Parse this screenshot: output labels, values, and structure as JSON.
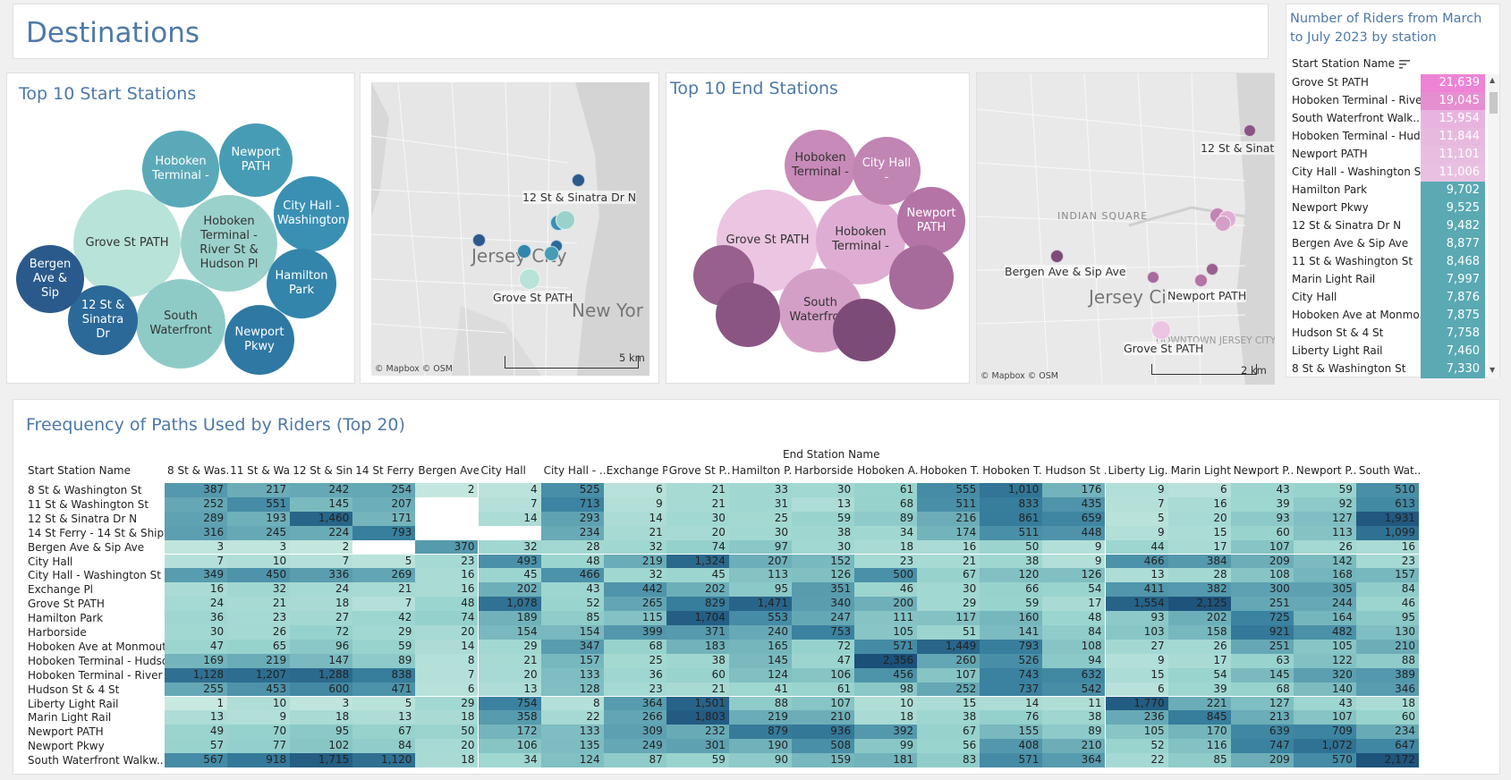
{
  "header": {
    "title": "Destinations"
  },
  "top_start": {
    "title": "Top 10 Start Stations",
    "bubbles": [
      {
        "label": "Grove St PATH",
        "color": "#b8e3d8"
      },
      {
        "label": "Hoboken Terminal - River St & Hudson Pl",
        "color": "#9bd1cb"
      },
      {
        "label": "South Waterfront",
        "color": "#8ecbc7"
      },
      {
        "label": "Hoboken Terminal -",
        "color": "#5aa9b9"
      },
      {
        "label": "Newport PATH",
        "color": "#479cb5"
      },
      {
        "label": "City Hall - Washington",
        "color": "#3a90b3"
      },
      {
        "label": "Hamilton Park",
        "color": "#3385ab"
      },
      {
        "label": "Newport Pkwy",
        "color": "#2e78a4"
      },
      {
        "label": "12 St & Sinatra Dr",
        "color": "#2b6999"
      },
      {
        "label": "Bergen Ave & Sip",
        "color": "#2a5a8c"
      }
    ]
  },
  "map1": {
    "labels": [
      "12 St & Sinatra Dr N",
      "Grove St PATH",
      "Jersey City",
      "New Yor"
    ],
    "attribution": "© Mapbox © OSM",
    "scale": "5 km"
  },
  "top_end": {
    "title": "Top 10 End Stations",
    "bubbles": [
      {
        "label": "Grove St PATH",
        "color": "#ebc5e1"
      },
      {
        "label": "Hoboken Terminal -",
        "color": "#dfadd3"
      },
      {
        "label": "South Waterfront",
        "color": "#d49fc6"
      },
      {
        "label": "Hoboken Terminal -",
        "color": "#c88ab8"
      },
      {
        "label": "City Hall -",
        "color": "#c085b3"
      },
      {
        "label": "Newport PATH",
        "color": "#b474a6"
      },
      {
        "label": "",
        "color": "#a66b9a"
      },
      {
        "label": "",
        "color": "#97608d"
      },
      {
        "label": "",
        "color": "#8a5583"
      },
      {
        "label": "",
        "color": "#7d4b78"
      }
    ]
  },
  "map2": {
    "labels": [
      "12 St & Sinatra",
      "INDIAN SQUARE",
      "Bergen Ave & Sip Ave",
      "Jersey Ci",
      "Newport PATH",
      "Grove St PATH",
      "DOWNTOWN JERSEY CITY"
    ],
    "attribution": "© Mapbox © OSM",
    "scale": "2 km"
  },
  "riders": {
    "title": "Number of Riders from March to July 2023 by station",
    "column_header": "Start Station Name",
    "rows": [
      {
        "name": "Grove St PATH",
        "value": "21,639",
        "color": "#ee83d6"
      },
      {
        "name": "Hoboken Terminal - Rive..",
        "value": "19,045",
        "color": "#e58fd0"
      },
      {
        "name": "South Waterfront Walk..",
        "value": "15,954",
        "color": "#e8b4df"
      },
      {
        "name": "Hoboken Terminal - Hud..",
        "value": "11,844",
        "color": "#e8b9df"
      },
      {
        "name": "Newport PATH",
        "value": "11,101",
        "color": "#e8bde0"
      },
      {
        "name": "City Hall - Washington S..",
        "value": "11,006",
        "color": "#e9c0e1"
      },
      {
        "name": "Hamilton Park",
        "value": "9,702",
        "color": "#5aa9b3"
      },
      {
        "name": "Newport Pkwy",
        "value": "9,525",
        "color": "#5aa9b3"
      },
      {
        "name": "12 St & Sinatra Dr N",
        "value": "9,482",
        "color": "#5aa9b3"
      },
      {
        "name": "Bergen Ave & Sip Ave",
        "value": "8,877",
        "color": "#5aa9b3"
      },
      {
        "name": "11 St & Washington St",
        "value": "8,468",
        "color": "#5aa9b3"
      },
      {
        "name": "Marin Light Rail",
        "value": "7,997",
        "color": "#5aa9b3"
      },
      {
        "name": "City Hall",
        "value": "7,876",
        "color": "#5aa9b3"
      },
      {
        "name": "Hoboken Ave at Monmo..",
        "value": "7,875",
        "color": "#5aa9b3"
      },
      {
        "name": "Hudson St & 4 St",
        "value": "7,758",
        "color": "#5aa9b3"
      },
      {
        "name": "Liberty Light Rail",
        "value": "7,460",
        "color": "#5aa9b3"
      },
      {
        "name": "8 St & Washington St",
        "value": "7,330",
        "color": "#5aa9b3"
      }
    ]
  },
  "freq": {
    "title": "Freequency of Paths Used by Riders (Top 20)",
    "end_header": "End Station Name",
    "row_header": "Start Station Name",
    "columns": [
      "8 St & Was..",
      "11 St & Wa..",
      "12 St & Sin..",
      "14 St Ferry ..",
      "Bergen Ave..",
      "City Hall",
      "City Hall - ..",
      "Exchange Pl",
      "Grove St P..",
      "Hamilton P..",
      "Harborside",
      "Hoboken A..",
      "Hoboken T..",
      "Hoboken T..",
      "Hudson St ..",
      "Liberty Lig..",
      "Marin Light..",
      "Newport P..",
      "Newport P..",
      "South Wat.."
    ],
    "rows": [
      {
        "name": "8 St & Washington St",
        "values": [
          387,
          217,
          242,
          254,
          2,
          4,
          525,
          6,
          21,
          33,
          30,
          61,
          555,
          1010,
          176,
          9,
          6,
          43,
          59,
          510
        ]
      },
      {
        "name": "11 St & Washington St",
        "values": [
          252,
          551,
          145,
          207,
          null,
          7,
          713,
          9,
          21,
          31,
          13,
          68,
          511,
          833,
          435,
          7,
          16,
          39,
          92,
          613
        ]
      },
      {
        "name": "12 St & Sinatra Dr N",
        "values": [
          289,
          193,
          1460,
          171,
          null,
          14,
          293,
          14,
          30,
          25,
          59,
          89,
          216,
          861,
          659,
          5,
          20,
          93,
          127,
          1931
        ]
      },
      {
        "name": "14 St Ferry - 14 St & Shipy..",
        "values": [
          316,
          245,
          224,
          793,
          null,
          null,
          234,
          21,
          20,
          30,
          38,
          34,
          174,
          511,
          448,
          9,
          15,
          60,
          113,
          1099
        ]
      },
      {
        "name": "Bergen Ave & Sip Ave",
        "values": [
          3,
          3,
          2,
          null,
          370,
          32,
          28,
          32,
          74,
          97,
          30,
          18,
          16,
          50,
          9,
          44,
          17,
          107,
          26,
          16
        ]
      },
      {
        "name": "City Hall",
        "values": [
          7,
          10,
          7,
          5,
          23,
          493,
          48,
          219,
          1324,
          207,
          152,
          23,
          21,
          38,
          9,
          466,
          384,
          209,
          142,
          23
        ]
      },
      {
        "name": "City Hall - Washington St ..",
        "values": [
          349,
          450,
          336,
          269,
          16,
          45,
          466,
          32,
          45,
          113,
          126,
          500,
          67,
          120,
          126,
          13,
          28,
          108,
          168,
          157
        ]
      },
      {
        "name": "Exchange Pl",
        "values": [
          16,
          32,
          24,
          21,
          16,
          202,
          43,
          442,
          202,
          95,
          351,
          46,
          30,
          66,
          54,
          411,
          382,
          300,
          305,
          84
        ]
      },
      {
        "name": "Grove St PATH",
        "values": [
          24,
          21,
          18,
          7,
          48,
          1078,
          52,
          265,
          829,
          1471,
          340,
          200,
          29,
          59,
          17,
          1554,
          2125,
          251,
          244,
          46
        ]
      },
      {
        "name": "Hamilton Park",
        "values": [
          36,
          23,
          27,
          42,
          74,
          189,
          85,
          115,
          1704,
          553,
          247,
          111,
          117,
          160,
          48,
          93,
          202,
          725,
          164,
          95
        ]
      },
      {
        "name": "Harborside",
        "values": [
          30,
          26,
          72,
          29,
          20,
          154,
          154,
          399,
          371,
          240,
          753,
          105,
          51,
          141,
          84,
          103,
          158,
          921,
          482,
          130
        ]
      },
      {
        "name": "Hoboken Ave at Monmout..",
        "values": [
          47,
          65,
          96,
          59,
          14,
          29,
          347,
          68,
          183,
          165,
          72,
          571,
          1449,
          793,
          108,
          27,
          26,
          251,
          105,
          210
        ]
      },
      {
        "name": "Hoboken Terminal - Hudso..",
        "values": [
          169,
          219,
          147,
          89,
          8,
          21,
          157,
          25,
          38,
          145,
          47,
          2356,
          260,
          526,
          94,
          9,
          17,
          63,
          122,
          88
        ]
      },
      {
        "name": "Hoboken Terminal - River ..",
        "values": [
          1128,
          1207,
          1288,
          838,
          7,
          20,
          133,
          36,
          60,
          124,
          106,
          456,
          107,
          743,
          632,
          15,
          54,
          145,
          320,
          389
        ]
      },
      {
        "name": "Hudson St & 4 St",
        "values": [
          255,
          453,
          600,
          471,
          6,
          13,
          128,
          23,
          21,
          41,
          61,
          98,
          252,
          737,
          542,
          6,
          39,
          68,
          140,
          346
        ]
      },
      {
        "name": "Liberty Light Rail",
        "values": [
          1,
          10,
          3,
          5,
          29,
          754,
          8,
          364,
          1501,
          88,
          107,
          10,
          15,
          14,
          11,
          1770,
          221,
          127,
          43,
          18
        ]
      },
      {
        "name": "Marin Light Rail",
        "values": [
          13,
          9,
          18,
          13,
          18,
          358,
          22,
          266,
          1803,
          219,
          210,
          18,
          38,
          76,
          38,
          236,
          845,
          213,
          107,
          60
        ]
      },
      {
        "name": "Newport PATH",
        "values": [
          49,
          70,
          95,
          67,
          50,
          172,
          133,
          309,
          232,
          879,
          936,
          392,
          67,
          155,
          89,
          105,
          170,
          639,
          709,
          234
        ]
      },
      {
        "name": "Newport Pkwy",
        "values": [
          57,
          77,
          102,
          84,
          20,
          106,
          135,
          249,
          301,
          190,
          508,
          99,
          56,
          408,
          210,
          52,
          116,
          747,
          1072,
          647
        ]
      },
      {
        "name": "South Waterfront Walkw..",
        "values": [
          567,
          918,
          1715,
          1120,
          18,
          34,
          124,
          87,
          59,
          90,
          159,
          181,
          83,
          571,
          364,
          22,
          85,
          209,
          570,
          2172
        ]
      }
    ]
  }
}
